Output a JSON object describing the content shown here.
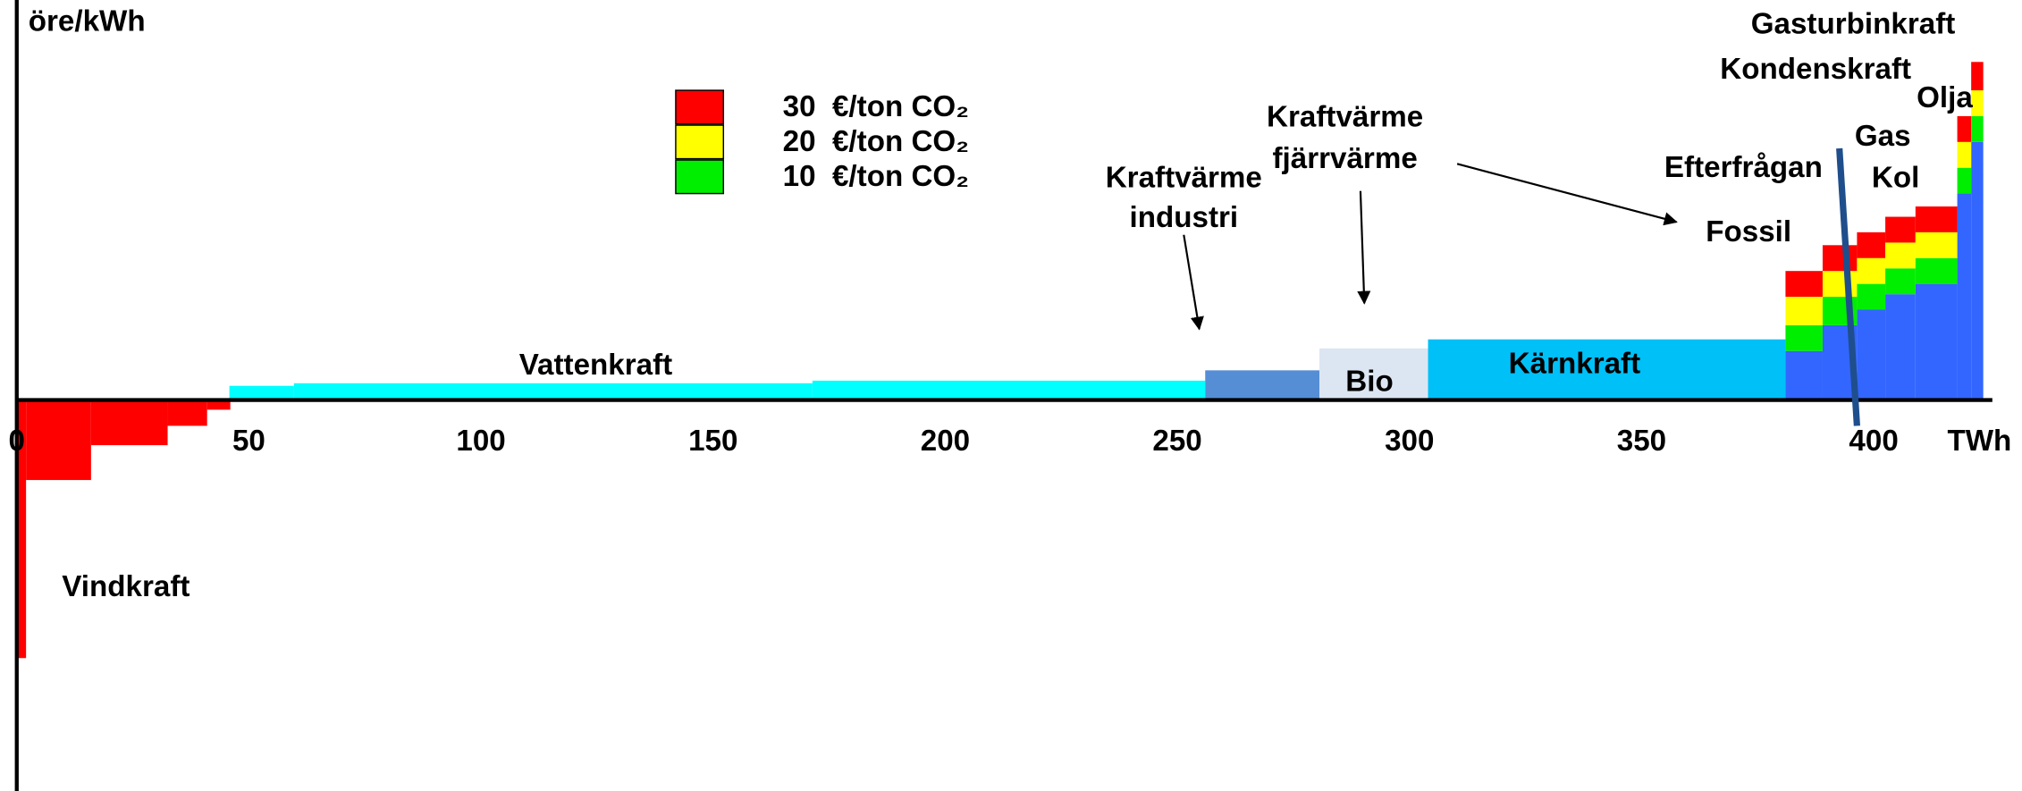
{
  "chart_data": {
    "type": "merit-order",
    "y_label": "öre/kWh",
    "x_label": "TWh",
    "xlim": [
      0,
      430
    ],
    "ylim": [
      -60,
      62
    ],
    "xticks": [
      0,
      50,
      100,
      150,
      200,
      250,
      300,
      350,
      400
    ],
    "blocks": [
      {
        "name": [
          "Vindkraft"
        ],
        "color": "#ff0000",
        "edges": [
          0,
          2,
          16,
          32.5,
          41,
          46
        ],
        "values": [
          -40,
          -12.4,
          -7,
          -4,
          -1.5
        ]
      },
      {
        "name": [
          "Vattenkraft"
        ],
        "color": "#00ffff",
        "edges": [
          45.8,
          59.7,
          171.4,
          256
        ],
        "values": [
          2.2,
          2.6,
          3
        ]
      },
      {
        "name": [
          "Kraftvärme",
          "industri"
        ],
        "color": "#558ed5",
        "edges": [
          256,
          280.6
        ],
        "values": [
          4.6
        ]
      },
      {
        "name": [
          "Bio"
        ],
        "color": "#dce6f2",
        "edges": [
          280.6,
          304
        ],
        "values": [
          8
        ]
      },
      {
        "name": [
          "Kärnkraft"
        ],
        "color": "#00c0f8",
        "edges": [
          304,
          381
        ],
        "values": [
          9.4
        ]
      },
      {
        "name": [
          "Fossil"
        ],
        "color": "#3366ff",
        "edges": [
          381,
          389,
          396.4,
          402.5,
          409,
          418,
          421,
          423.6
        ],
        "values": [
          7.6,
          11.6,
          14,
          16.4,
          18,
          32,
          40
        ]
      }
    ],
    "co2_series": [
      {
        "name": "10  €/ton CO₂",
        "color": "#00ee00",
        "values": [
          4,
          4.4,
          4,
          4,
          4,
          4,
          4
        ]
      },
      {
        "name": "20  €/ton CO₂",
        "color": "#ffff00",
        "values": [
          4.4,
          4,
          4,
          4,
          4,
          4,
          4
        ]
      },
      {
        "name": "30  €/ton CO₂",
        "color": "#ff0000",
        "values": [
          4,
          4,
          4,
          4,
          4,
          4,
          4.4
        ]
      }
    ],
    "demand": {
      "name": "Efterfrågan",
      "color": "#1f4e8c",
      "x": [
        392.6,
        396.4
      ],
      "y": [
        39,
        -4
      ]
    },
    "annotations": [
      [
        "Kraftvärme",
        "fjärrvärme"
      ],
      [
        "Gasturbinkraft"
      ],
      [
        "Kondenskraft"
      ],
      [
        "Olja"
      ],
      [
        "Gas"
      ],
      [
        "Kol"
      ]
    ]
  }
}
